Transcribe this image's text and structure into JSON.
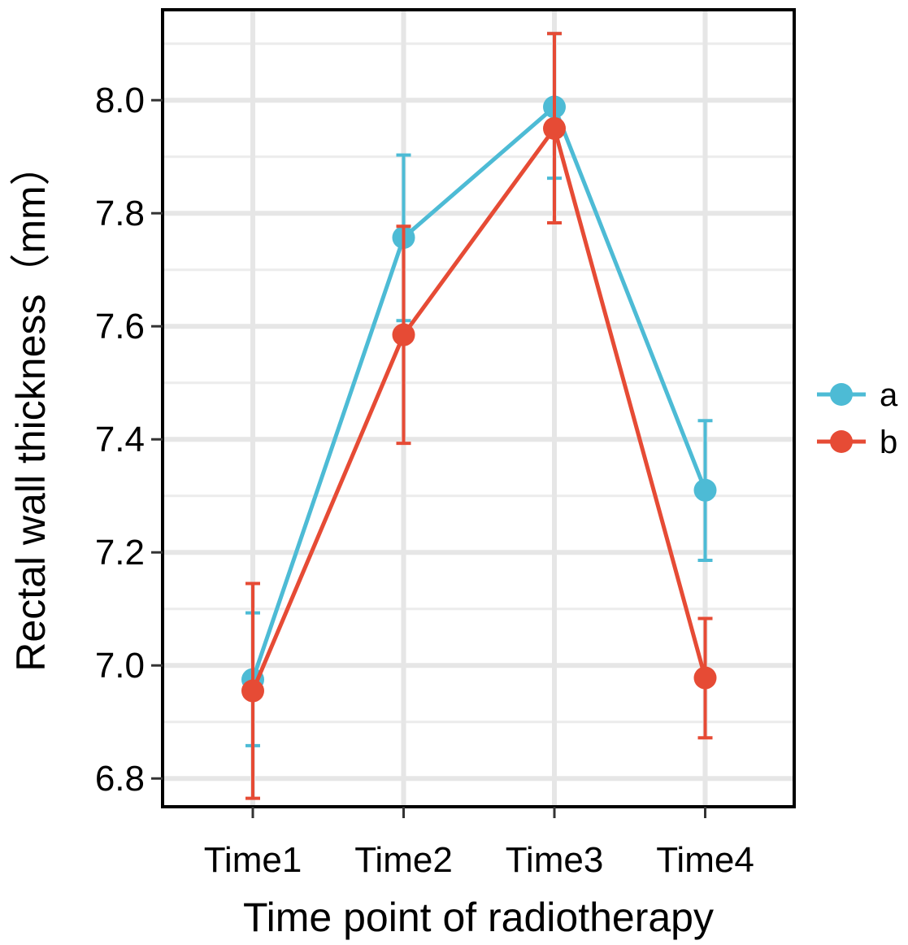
{
  "chart_data": {
    "type": "line",
    "categories": [
      "Time1",
      "Time2",
      "Time3",
      "Time4"
    ],
    "series": [
      {
        "name": "a",
        "color": "#4DBBD5",
        "values": [
          6.975,
          7.757,
          7.988,
          7.31
        ],
        "error_low": [
          6.858,
          7.61,
          7.862,
          7.186
        ],
        "error_high": [
          7.093,
          7.903,
          8.118,
          7.433
        ]
      },
      {
        "name": "b",
        "color": "#E64B35",
        "values": [
          6.955,
          7.585,
          7.95,
          6.978
        ],
        "error_low": [
          6.765,
          7.393,
          7.783,
          6.872
        ],
        "error_high": [
          7.145,
          7.777,
          8.118,
          7.083
        ]
      }
    ],
    "xlabel": "Time point of radiotherapy",
    "ylabel": "Rectal wall thickness（mm）",
    "ylim": [
      6.75,
      8.16
    ],
    "yticks": [
      6.8,
      7.0,
      7.2,
      7.4,
      7.6,
      7.8,
      8.0
    ],
    "ytick_labels": [
      "6.8",
      "7.0",
      "7.2",
      "7.4",
      "7.6",
      "7.8",
      "8.0"
    ],
    "grid": true,
    "legend_position": "right"
  }
}
